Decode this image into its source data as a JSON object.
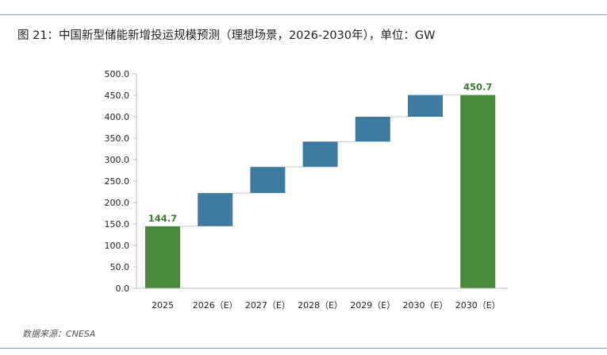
{
  "header": {
    "title": "图 21：中国新型储能新增投运规模预测（理想场景，2026-2030年），单位：GW"
  },
  "footer": {
    "source": "数据来源：CNESA"
  },
  "colors": {
    "total_bar": "#4b8a3d",
    "step_bar": "#3f7aa0",
    "connector": "#c8c8c8",
    "axis": "#bbbbbb",
    "total_label": "#3d7a32"
  },
  "chart_data": {
    "type": "bar",
    "subtype": "waterfall",
    "title": "图 21：中国新型储能新增投运规模预测（理想场景，2026-2030年），单位：GW",
    "xlabel": "",
    "ylabel": "",
    "ylim": [
      0,
      500
    ],
    "yticks": [
      0,
      50,
      100,
      150,
      200,
      250,
      300,
      350,
      400,
      450,
      500
    ],
    "ytick_labels": [
      "0.0",
      "50.0",
      "100.0",
      "150.0",
      "200.0",
      "250.0",
      "300.0",
      "350.0",
      "400.0",
      "450.0",
      "500.0"
    ],
    "grid": false,
    "legend": "none",
    "categories": [
      "2025",
      "2026（E）",
      "2027（E）",
      "2028（E）",
      "2029（E）",
      "2030（E）",
      "2030（E）"
    ],
    "bars": [
      {
        "kind": "total",
        "start": 0,
        "end": 144.7
      },
      {
        "kind": "step",
        "start": 144.7,
        "end": 222
      },
      {
        "kind": "step",
        "start": 222,
        "end": 283
      },
      {
        "kind": "step",
        "start": 283,
        "end": 342
      },
      {
        "kind": "step",
        "start": 342,
        "end": 400
      },
      {
        "kind": "step",
        "start": 400,
        "end": 450.7
      },
      {
        "kind": "total",
        "start": 0,
        "end": 450.7
      }
    ],
    "data_labels": [
      {
        "index": 0,
        "text": "144.7"
      },
      {
        "index": 6,
        "text": "450.7"
      }
    ]
  }
}
